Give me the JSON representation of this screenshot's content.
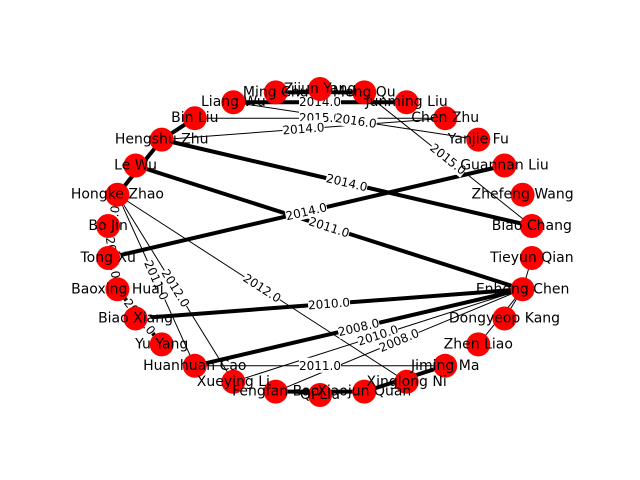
{
  "colors": {
    "node": "#ff0000",
    "edge": "#000000",
    "background": "#ffffff"
  },
  "nodes": [
    "Zijun Yang",
    "Ming Chu",
    "Meng Qu",
    "Liang Wu",
    "Junming Liu",
    "Bin Liu",
    "Chen Zhu",
    "Hengshu Zhu",
    "Yanjie Fu",
    "Le Wu",
    "Guannan Liu",
    "Hongke Zhao",
    "Zhefeng Wang",
    "Bo Jin",
    "Biao Chang",
    "Tong Xu",
    "Tieyun Qian",
    "Baoxing Huai",
    "Enhong Chen",
    "Biao Xiang",
    "Dongyeop Kang",
    "Yu Yang",
    "Zhen Liao",
    "Huanhuan Cao",
    "Jiming Ma",
    "Xueying Li",
    "Xinglong Ni",
    "Fengfan Bao",
    "Xiaojun Quan",
    "Qi Liu"
  ],
  "edges": [
    {
      "source": "Liang Wu",
      "target": "Junming Liu",
      "label": "2014.0",
      "width": 4
    },
    {
      "source": "Zijun Yang",
      "target": "Ming Chu",
      "label": "",
      "width": 1
    },
    {
      "source": "Ming Chu",
      "target": "Meng Qu",
      "label": "",
      "width": 4
    },
    {
      "source": "Bin Liu",
      "target": "Chen Zhu",
      "label": "2015.0",
      "width": 1
    },
    {
      "source": "Liang Wu",
      "target": "Yanjie Fu",
      "label": "2016.0",
      "width": 1
    },
    {
      "source": "Meng Qu",
      "target": "Biao Chang",
      "label": "2015.0",
      "width": 1
    },
    {
      "source": "Hengshu Zhu",
      "target": "Chen Zhu",
      "label": "2014.0",
      "width": 1
    },
    {
      "source": "Hengshu Zhu",
      "target": "Biao Chang",
      "label": "2014.0",
      "width": 4
    },
    {
      "source": "Hengshu Zhu",
      "target": "Hongke Zhao",
      "label": "",
      "width": 4
    },
    {
      "source": "Hengshu Zhu",
      "target": "Bin Liu",
      "label": "",
      "width": 4
    },
    {
      "source": "Tong Xu",
      "target": "Guannan Liu",
      "label": "2014.0",
      "width": 4
    },
    {
      "source": "Biao Xiang",
      "target": "Enhong Chen",
      "label": "2010.0",
      "width": 4
    },
    {
      "source": "Le Wu",
      "target": "Enhong Chen",
      "label": "2011.0",
      "width": 4
    },
    {
      "source": "Hongke Zhao",
      "target": "Xueying Li",
      "label": "2012.0",
      "width": 1
    },
    {
      "source": "Hongke Zhao",
      "target": "Xinglong Ni",
      "label": "2012.0",
      "width": 1
    },
    {
      "source": "Hongke Zhao",
      "target": "Tong Xu",
      "label": "2014.0",
      "width": 4
    },
    {
      "source": "Bo Jin",
      "target": "Baoxing Huai",
      "label": "2014.0",
      "width": 1
    },
    {
      "source": "Hongke Zhao",
      "target": "Huanhuan Cao",
      "label": "2011.0",
      "width": 1
    },
    {
      "source": "Baoxing Huai",
      "target": "Yu Yang",
      "label": "2013.0",
      "width": 4
    },
    {
      "source": "Huanhuan Cao",
      "target": "Enhong Chen",
      "label": "2008.0",
      "width": 4
    },
    {
      "source": "Huanhuan Cao",
      "target": "Jiming Ma",
      "label": "2011.0",
      "width": 1
    },
    {
      "source": "Xueying Li",
      "target": "Enhong Chen",
      "label": "2010.0",
      "width": 1
    },
    {
      "source": "Fengfan Bao",
      "target": "Enhong Chen",
      "label": "2008.0",
      "width": 1
    },
    {
      "source": "Enhong Chen",
      "target": "Zhen Liao",
      "label": "",
      "width": 1
    },
    {
      "source": "Enhong Chen",
      "target": "Dongyeop Kang",
      "label": "",
      "width": 1
    },
    {
      "source": "Enhong Chen",
      "target": "Tieyun Qian",
      "label": "",
      "width": 1
    },
    {
      "source": "Fengfan Bao",
      "target": "Xiaojun Quan",
      "label": "",
      "width": 4
    },
    {
      "source": "Xiaojun Quan",
      "target": "Jiming Ma",
      "label": "",
      "width": 4
    },
    {
      "source": "Qi Liu",
      "target": "Fengfan Bao",
      "label": "",
      "width": 1
    }
  ]
}
